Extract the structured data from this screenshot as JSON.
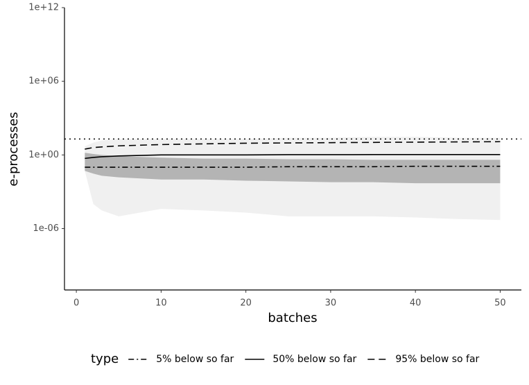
{
  "chart_data": {
    "type": "line",
    "xlabel": "batches",
    "ylabel": "e-processes",
    "log_y": true,
    "xlim": [
      -1.4,
      52.5
    ],
    "xticks": [
      0,
      10,
      20,
      30,
      40,
      50
    ],
    "ylim": [
      1e-11,
      1000000000000.0
    ],
    "yticks": [
      {
        "value": 1e-06,
        "label": "1e-06"
      },
      {
        "value": 1,
        "label": "1e+00"
      },
      {
        "value": 1000000.0,
        "label": "1e+06"
      },
      {
        "value": 1000000000000.0,
        "label": "1e+12"
      }
    ],
    "x": [
      1,
      2,
      3,
      5,
      10,
      15,
      20,
      25,
      30,
      35,
      40,
      45,
      50
    ],
    "band": {
      "color": "#e6e6e6",
      "lower": [
        0.05,
        0.0001,
        3e-05,
        1e-05,
        4e-05,
        3e-05,
        2e-05,
        1e-05,
        1e-05,
        1e-05,
        8e-06,
        6e-06,
        5e-06
      ],
      "upper": [
        5,
        10,
        15,
        20,
        20,
        20,
        20,
        25,
        25,
        30,
        30,
        25,
        25
      ]
    },
    "core": {
      "color": "#8c8c8c",
      "lower": [
        0.05,
        0.03,
        0.02,
        0.015,
        0.01,
        0.01,
        0.008,
        0.007,
        0.006,
        0.006,
        0.005,
        0.005,
        0.005
      ],
      "upper": [
        1.5,
        1.2,
        1,
        0.8,
        0.6,
        0.5,
        0.5,
        0.45,
        0.45,
        0.4,
        0.4,
        0.4,
        0.4
      ]
    },
    "hline": {
      "value": 20,
      "dash": "2,5",
      "color": "#000000"
    },
    "legend_title": "type",
    "legend_position": "bottom",
    "series": [
      {
        "name": "5% below so far",
        "color": "#000000",
        "dash": "8,4,2,4",
        "values": [
          0.1,
          0.1,
          0.1,
          0.1,
          0.1,
          0.1,
          0.1,
          0.11,
          0.11,
          0.11,
          0.12,
          0.12,
          0.12
        ]
      },
      {
        "name": "50% below so far",
        "color": "#000000",
        "dash": "none",
        "values": [
          0.52,
          0.63,
          0.71,
          0.83,
          1,
          1,
          1,
          1.05,
          1.05,
          1.07,
          1.07,
          1.07,
          1.07
        ]
      },
      {
        "name": "95% below so far",
        "color": "#000000",
        "dash": "10,6",
        "values": [
          3,
          4,
          4.5,
          5.5,
          7,
          8,
          9,
          9.5,
          10,
          10.5,
          11,
          11.5,
          12
        ]
      }
    ]
  }
}
